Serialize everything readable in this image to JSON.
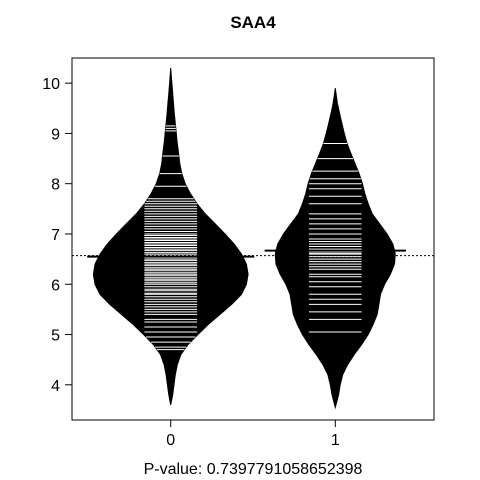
{
  "chart_data": {
    "type": "beanplot",
    "title": "SAA4",
    "xlabel": "P-value: 0.7397791058652398",
    "ylabel": "",
    "ylim": [
      3.3,
      10.5
    ],
    "xlim": [
      -0.6,
      1.6
    ],
    "yticks": [
      "4",
      "5",
      "6",
      "7",
      "8",
      "9",
      "10"
    ],
    "categories": [
      "0",
      "1"
    ],
    "overall_mean": 6.57,
    "groups": [
      {
        "name": "0",
        "mean": 6.55,
        "density": [
          [
            3.6,
            0.0
          ],
          [
            3.8,
            0.012
          ],
          [
            4.0,
            0.02
          ],
          [
            4.2,
            0.028
          ],
          [
            4.4,
            0.04
          ],
          [
            4.6,
            0.062
          ],
          [
            4.8,
            0.105
          ],
          [
            5.0,
            0.165
          ],
          [
            5.2,
            0.228
          ],
          [
            5.4,
            0.3
          ],
          [
            5.6,
            0.37
          ],
          [
            5.8,
            0.43
          ],
          [
            6.0,
            0.46
          ],
          [
            6.2,
            0.47
          ],
          [
            6.4,
            0.46
          ],
          [
            6.6,
            0.43
          ],
          [
            6.8,
            0.385
          ],
          [
            7.0,
            0.33
          ],
          [
            7.2,
            0.27
          ],
          [
            7.4,
            0.21
          ],
          [
            7.6,
            0.16
          ],
          [
            7.8,
            0.12
          ],
          [
            8.0,
            0.088
          ],
          [
            8.2,
            0.067
          ],
          [
            8.4,
            0.055
          ],
          [
            8.6,
            0.048
          ],
          [
            8.8,
            0.04
          ],
          [
            9.0,
            0.034
          ],
          [
            9.2,
            0.028
          ],
          [
            9.4,
            0.022
          ],
          [
            9.6,
            0.017
          ],
          [
            9.8,
            0.012
          ],
          [
            10.0,
            0.007
          ],
          [
            10.3,
            0.0
          ]
        ],
        "observations": [
          4.7,
          4.75,
          4.85,
          4.95,
          5.05,
          5.15,
          5.25,
          5.3,
          5.4,
          5.45,
          5.5,
          5.55,
          5.6,
          5.65,
          5.7,
          5.75,
          5.8,
          5.82,
          5.87,
          5.9,
          5.95,
          6.0,
          6.03,
          6.07,
          6.1,
          6.13,
          6.17,
          6.2,
          6.23,
          6.27,
          6.3,
          6.33,
          6.37,
          6.4,
          6.43,
          6.47,
          6.5,
          6.53,
          6.57,
          6.6,
          6.63,
          6.67,
          6.7,
          6.73,
          6.77,
          6.8,
          6.83,
          6.87,
          6.9,
          6.93,
          6.97,
          7.0,
          7.05,
          7.1,
          7.15,
          7.2,
          7.25,
          7.3,
          7.35,
          7.4,
          7.45,
          7.5,
          7.55,
          7.6,
          7.65,
          7.7,
          7.95,
          8.2,
          8.55,
          9.05,
          9.1,
          9.15
        ]
      },
      {
        "name": "1",
        "mean": 6.67,
        "density": [
          [
            3.55,
            0.0
          ],
          [
            3.8,
            0.02
          ],
          [
            4.0,
            0.03
          ],
          [
            4.2,
            0.045
          ],
          [
            4.4,
            0.075
          ],
          [
            4.6,
            0.115
          ],
          [
            4.8,
            0.16
          ],
          [
            5.0,
            0.2
          ],
          [
            5.2,
            0.23
          ],
          [
            5.4,
            0.255
          ],
          [
            5.6,
            0.265
          ],
          [
            5.8,
            0.275
          ],
          [
            6.0,
            0.3
          ],
          [
            6.2,
            0.335
          ],
          [
            6.4,
            0.36
          ],
          [
            6.6,
            0.365
          ],
          [
            6.8,
            0.35
          ],
          [
            7.0,
            0.315
          ],
          [
            7.2,
            0.27
          ],
          [
            7.4,
            0.225
          ],
          [
            7.6,
            0.2
          ],
          [
            7.8,
            0.18
          ],
          [
            8.0,
            0.165
          ],
          [
            8.2,
            0.145
          ],
          [
            8.4,
            0.12
          ],
          [
            8.6,
            0.095
          ],
          [
            8.8,
            0.072
          ],
          [
            9.0,
            0.055
          ],
          [
            9.2,
            0.04
          ],
          [
            9.4,
            0.026
          ],
          [
            9.6,
            0.013
          ],
          [
            9.9,
            0.0
          ]
        ],
        "observations": [
          5.05,
          5.3,
          5.45,
          5.6,
          5.7,
          5.8,
          5.95,
          6.05,
          6.15,
          6.2,
          6.3,
          6.35,
          6.4,
          6.45,
          6.5,
          6.55,
          6.6,
          6.62,
          6.65,
          6.7,
          6.75,
          6.8,
          6.85,
          6.9,
          7.0,
          7.1,
          7.2,
          7.3,
          7.4,
          7.6,
          7.75,
          7.9,
          8.0,
          8.1,
          8.25,
          8.5,
          8.8
        ]
      }
    ]
  },
  "colors": {
    "bean_fill": "#000000",
    "bean_line": "#ffffff",
    "axis": "#000000",
    "background": "#ffffff"
  }
}
